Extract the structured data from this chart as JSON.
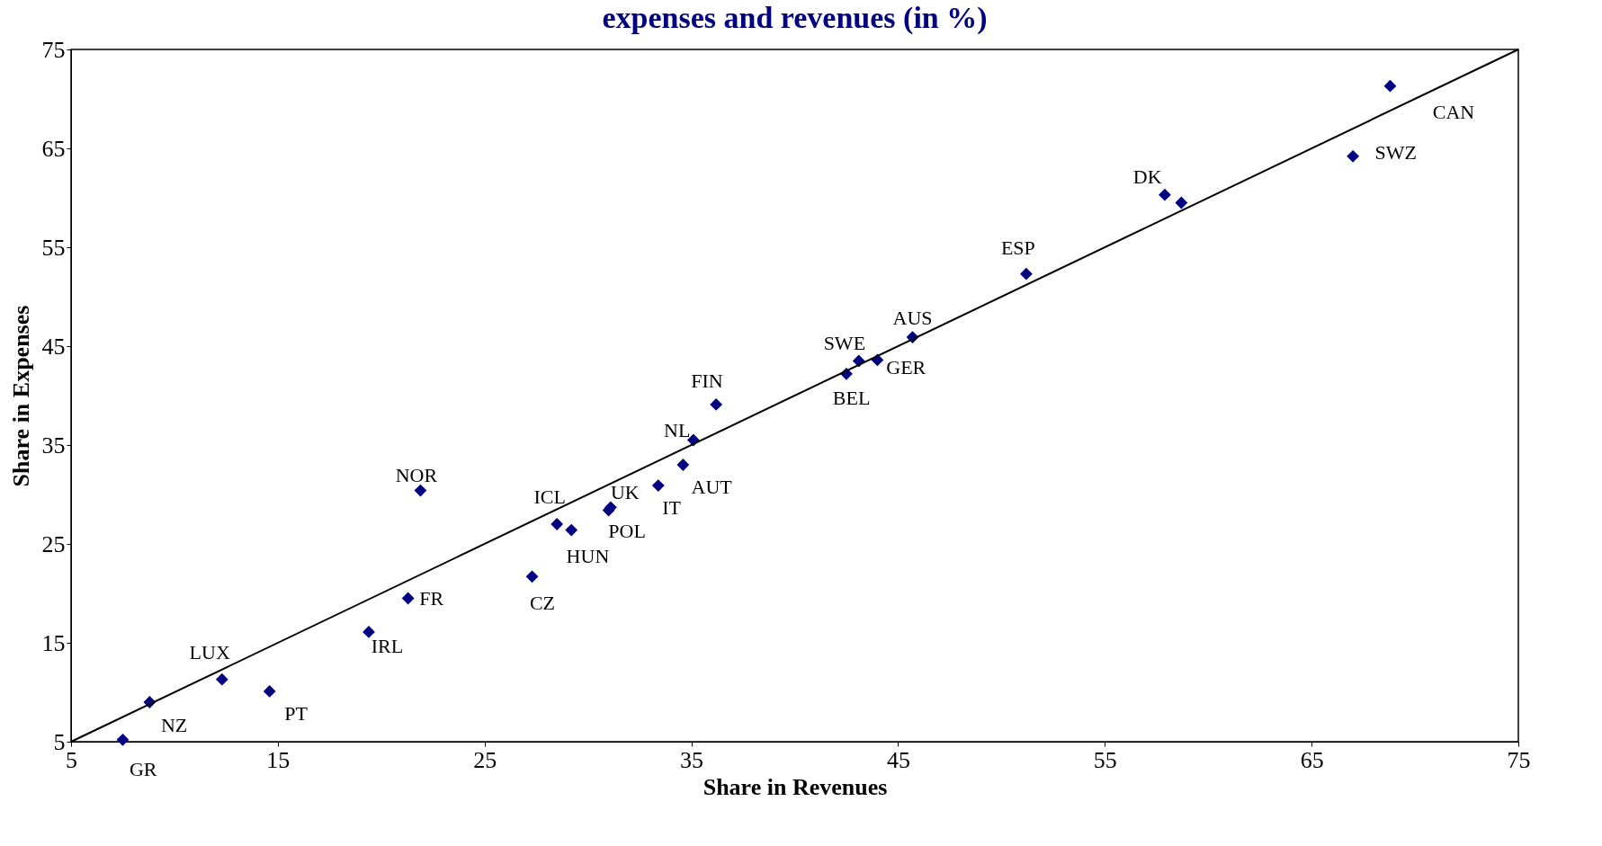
{
  "chart_data": {
    "type": "scatter",
    "title": "expenses and revenues (in %)",
    "xlabel": "Share in Revenues",
    "ylabel": "Share in Expenses",
    "xlim": [
      5,
      75
    ],
    "ylim": [
      5,
      75
    ],
    "xticks": [
      5,
      15,
      25,
      35,
      45,
      55,
      65,
      75
    ],
    "yticks": [
      5,
      15,
      25,
      35,
      45,
      55,
      65,
      75
    ],
    "grid": false,
    "series": [
      {
        "marker": "diamond",
        "color": "#000080",
        "x": [
          7.5,
          8.8,
          12.3,
          14.6,
          19.4,
          21.3,
          21.9,
          27.3,
          28.5,
          29.2,
          31.1,
          31.0,
          33.4,
          34.6,
          35.1,
          36.2,
          42.5,
          43.1,
          44.0,
          45.7,
          51.2,
          57.9,
          58.7,
          67.0,
          68.8
        ],
        "values": [
          5.2,
          9.0,
          11.3,
          10.1,
          16.1,
          19.5,
          30.4,
          21.7,
          27.0,
          26.4,
          28.7,
          28.4,
          30.9,
          33.0,
          35.5,
          39.1,
          42.2,
          43.5,
          43.6,
          45.9,
          52.3,
          60.3,
          59.5,
          64.2,
          71.3
        ]
      },
      {
        "type": "line",
        "marker": "none",
        "color": "#000000",
        "x": [
          5,
          75
        ],
        "values": [
          5,
          75
        ]
      }
    ],
    "annotations": [
      {
        "text": "GR",
        "x": 7.5,
        "y": 5.2
      },
      {
        "text": "NZ",
        "x": 8.8,
        "y": 9.0
      },
      {
        "text": "LUX",
        "x": 12.3,
        "y": 11.3
      },
      {
        "text": "PT",
        "x": 14.6,
        "y": 10.1
      },
      {
        "text": "IRL",
        "x": 19.4,
        "y": 16.1
      },
      {
        "text": "FR",
        "x": 21.3,
        "y": 19.5
      },
      {
        "text": "NOR",
        "x": 21.9,
        "y": 30.4
      },
      {
        "text": "CZ",
        "x": 27.3,
        "y": 21.7
      },
      {
        "text": "ICL",
        "x": 28.5,
        "y": 27.0
      },
      {
        "text": "HUN",
        "x": 29.2,
        "y": 26.4
      },
      {
        "text": "UK",
        "x": 31.1,
        "y": 28.7
      },
      {
        "text": "POL",
        "x": 31.0,
        "y": 28.4
      },
      {
        "text": "IT",
        "x": 33.4,
        "y": 30.9
      },
      {
        "text": "AUT",
        "x": 34.6,
        "y": 33.0
      },
      {
        "text": "NL",
        "x": 35.1,
        "y": 35.5
      },
      {
        "text": "FIN",
        "x": 36.2,
        "y": 39.1
      },
      {
        "text": "BEL",
        "x": 42.5,
        "y": 42.2
      },
      {
        "text": "SWE",
        "x": 43.1,
        "y": 43.5
      },
      {
        "text": "GER",
        "x": 44.0,
        "y": 43.6
      },
      {
        "text": "AUS",
        "x": 45.7,
        "y": 45.9
      },
      {
        "text": "ESP",
        "x": 51.2,
        "y": 52.3
      },
      {
        "text": "DK",
        "x": 57.9,
        "y": 60.3
      },
      {
        "text": "SWZ",
        "x": 67.0,
        "y": 64.2
      },
      {
        "text": "CAN",
        "x": 68.8,
        "y": 71.3
      }
    ]
  }
}
